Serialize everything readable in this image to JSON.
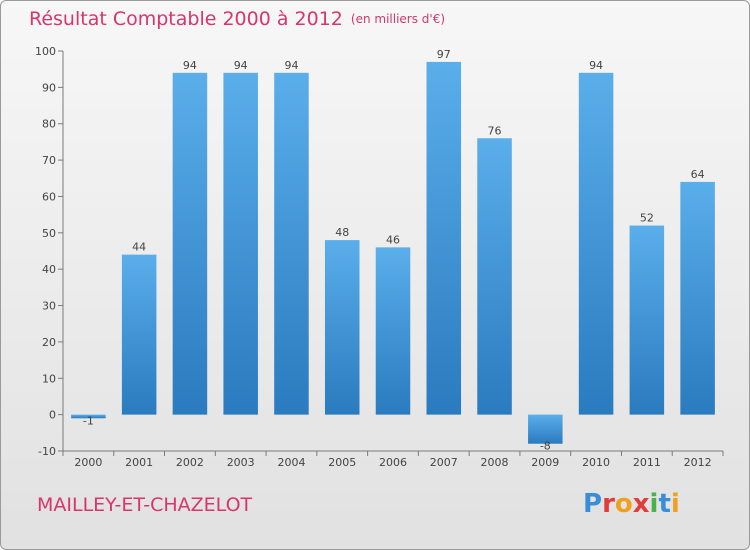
{
  "chart_data": {
    "type": "bar",
    "title": "Résultat Comptable 2000 à 2012",
    "subtitle": "(en milliers d'€)",
    "categories": [
      "2000",
      "2001",
      "2002",
      "2003",
      "2004",
      "2005",
      "2006",
      "2007",
      "2008",
      "2009",
      "2010",
      "2011",
      "2012"
    ],
    "values": [
      -1,
      44,
      94,
      94,
      94,
      48,
      46,
      97,
      76,
      -8,
      94,
      52,
      64
    ],
    "data_labels": [
      "-1",
      "44",
      "94",
      "94",
      "94",
      "48",
      "46",
      "97",
      "76",
      "-8",
      "94",
      "52",
      "64"
    ],
    "ylim": [
      -10,
      100
    ],
    "yticks": [
      -10,
      0,
      10,
      20,
      30,
      40,
      50,
      60,
      70,
      80,
      90,
      100
    ],
    "grid": false,
    "xlabel": "",
    "ylabel": "",
    "bar_color_top": "#5aaeea",
    "bar_color_bottom": "#2a7bbf"
  },
  "footer": {
    "commune": "MAILLEY-ET-CHAZELOT",
    "logo_letters": [
      "P",
      "r",
      "o",
      "x",
      "i",
      "t",
      "i"
    ],
    "logo_colors": [
      "#3a8ed8",
      "#e23b3b",
      "#f0a020",
      "#e23b3b",
      "#4caf50",
      "#3a8ed8",
      "#f0a020"
    ]
  },
  "colors": {
    "accent": "#d8356c",
    "axis": "#7a7a7a",
    "text": "#444444"
  }
}
